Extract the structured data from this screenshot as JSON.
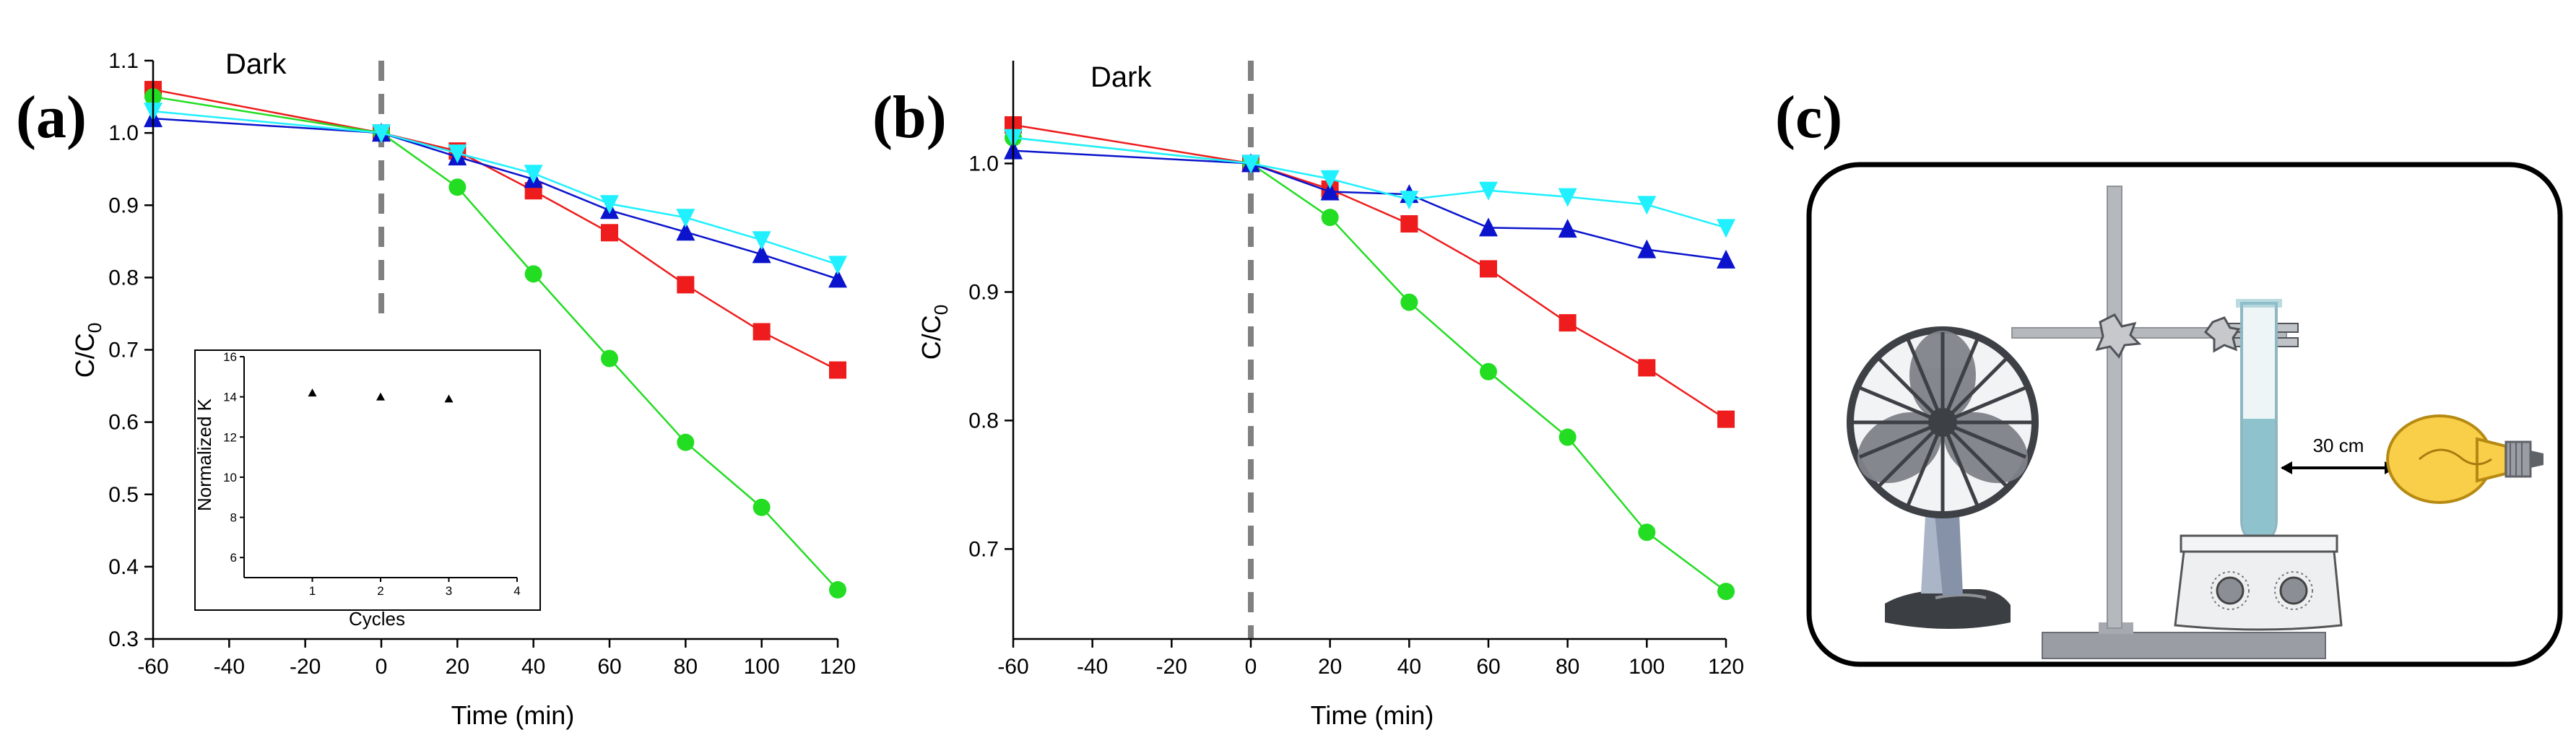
{
  "colors": {
    "red": "#ee1c1c",
    "green": "#22dd22",
    "blue": "#0b14cc",
    "cyan": "#20f0ff",
    "dashed": "#808080",
    "axis": "#000000"
  },
  "panels": {
    "a": {
      "label": "(a)"
    },
    "b": {
      "label": "(b)"
    },
    "c": {
      "label": "(c)",
      "distance_label": "30 cm"
    }
  },
  "chart_data": [
    {
      "id": "a",
      "type": "line",
      "annotation": "Dark",
      "xlabel": "Time (min)",
      "ylabel": "C/C",
      "ylabel_sub": "0",
      "xlim": [
        -60,
        120
      ],
      "ylim": [
        0.3,
        1.1
      ],
      "xticks": [
        "-60",
        "-40",
        "-20",
        "0",
        "20",
        "40",
        "60",
        "80",
        "100",
        "120"
      ],
      "yticks": [
        "0.3",
        "0.4",
        "0.5",
        "0.6",
        "0.7",
        "0.8",
        "0.9",
        "1.0",
        "1.1"
      ],
      "dark_boundary_x": 0,
      "series": [
        {
          "marker": "square",
          "color": "red",
          "x": [
            -60,
            0,
            20,
            40,
            60,
            80,
            100,
            120
          ],
          "y": [
            1.06,
            1.0,
            0.975,
            0.92,
            0.862,
            0.79,
            0.725,
            0.672
          ]
        },
        {
          "marker": "circle",
          "color": "green",
          "x": [
            -60,
            0,
            20,
            40,
            60,
            80,
            100,
            120
          ],
          "y": [
            1.05,
            1.0,
            0.925,
            0.805,
            0.688,
            0.572,
            0.482,
            0.368
          ]
        },
        {
          "marker": "triangle-up",
          "color": "blue",
          "x": [
            -60,
            0,
            20,
            40,
            60,
            80,
            100,
            120
          ],
          "y": [
            1.02,
            1.0,
            0.967,
            0.936,
            0.893,
            0.863,
            0.832,
            0.798
          ]
        },
        {
          "marker": "triangle-down",
          "color": "cyan",
          "x": [
            -60,
            0,
            20,
            40,
            60,
            80,
            100,
            120
          ],
          "y": [
            1.03,
            1.0,
            0.972,
            0.944,
            0.902,
            0.883,
            0.852,
            0.818
          ]
        }
      ],
      "inset": {
        "type": "scatter",
        "xlabel": "Cycles",
        "ylabel": "Normalized K",
        "xlim": [
          0,
          4
        ],
        "ylim": [
          5,
          16
        ],
        "xticks": [
          "1",
          "2",
          "3",
          "4"
        ],
        "yticks": [
          "6",
          "8",
          "10",
          "12",
          "14",
          "16"
        ],
        "x": [
          1,
          2,
          3
        ],
        "y": [
          14.2,
          14.0,
          13.9
        ]
      }
    },
    {
      "id": "b",
      "type": "line",
      "annotation": "Dark",
      "xlabel": "Time (min)",
      "ylabel": "C/C",
      "ylabel_sub": "0",
      "xlim": [
        -60,
        120
      ],
      "ylim": [
        0.63,
        1.08
      ],
      "xticks": [
        "-60",
        "-40",
        "-20",
        "0",
        "20",
        "40",
        "60",
        "80",
        "100",
        "120"
      ],
      "yticks": [
        "0.7",
        "0.8",
        "0.9",
        "1.0"
      ],
      "dark_boundary_x": 0,
      "series": [
        {
          "marker": "square",
          "color": "red",
          "x": [
            -60,
            0,
            20,
            40,
            60,
            80,
            100,
            120
          ],
          "y": [
            1.03,
            1.0,
            0.98,
            0.953,
            0.918,
            0.876,
            0.841,
            0.801
          ]
        },
        {
          "marker": "circle",
          "color": "green",
          "x": [
            -60,
            0,
            20,
            40,
            60,
            80,
            100,
            120
          ],
          "y": [
            1.02,
            1.0,
            0.958,
            0.892,
            0.838,
            0.787,
            0.713,
            0.667
          ]
        },
        {
          "marker": "triangle-up",
          "color": "blue",
          "x": [
            -60,
            0,
            20,
            40,
            60,
            80,
            100,
            120
          ],
          "y": [
            1.01,
            1.0,
            0.978,
            0.976,
            0.95,
            0.949,
            0.933,
            0.925
          ]
        },
        {
          "marker": "triangle-down",
          "color": "cyan",
          "x": [
            -60,
            0,
            20,
            40,
            60,
            80,
            100,
            120
          ],
          "y": [
            1.02,
            1.0,
            0.988,
            0.972,
            0.979,
            0.974,
            0.968,
            0.95
          ]
        }
      ]
    }
  ]
}
